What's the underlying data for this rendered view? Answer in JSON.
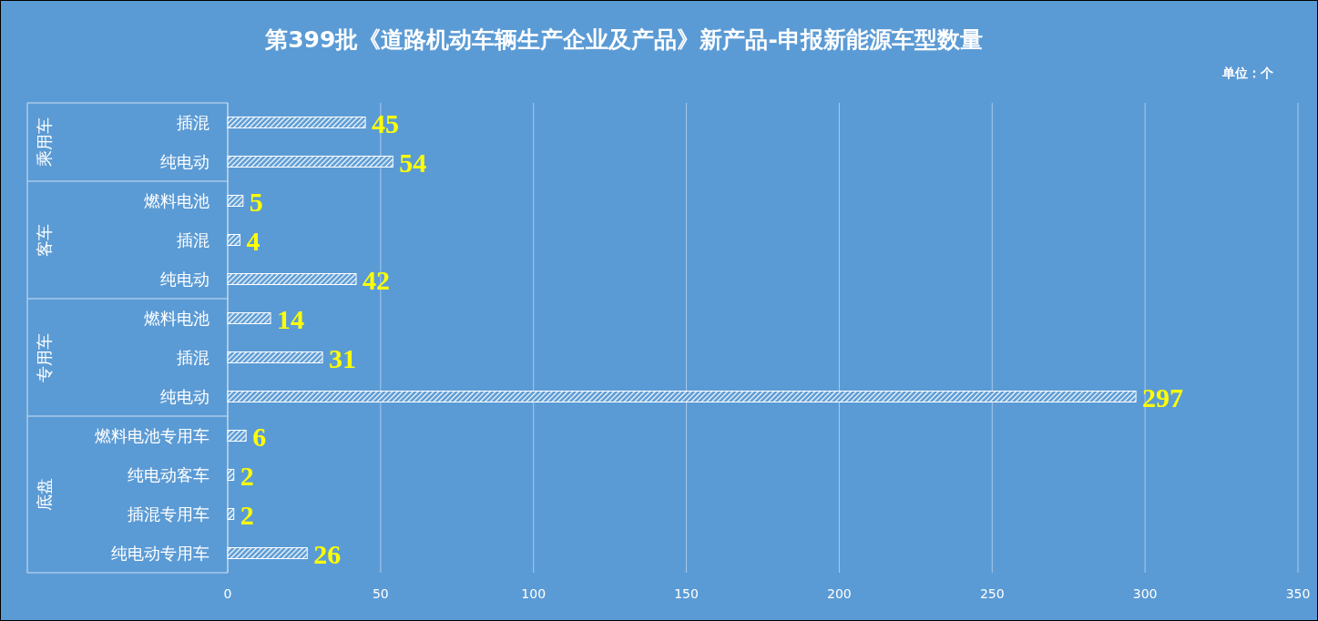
{
  "chart_data": {
    "type": "bar",
    "orientation": "horizontal",
    "title": "第399批《道路机动车辆生产企业及产品》新产品-申报新能源车型数量",
    "subtitle": "单位：个",
    "categories": [
      "插混",
      "纯电动",
      "燃料电池",
      "插混",
      "纯电动",
      "燃料电池",
      "插混",
      "纯电动",
      "燃料电池专用车",
      "纯电动客车",
      "插混专用车",
      "纯电动专用车"
    ],
    "values": [
      45,
      54,
      5,
      4,
      42,
      14,
      31,
      297,
      6,
      2,
      2,
      26
    ],
    "color": "#ffffff",
    "data_labels": true,
    "xlim": [
      0,
      350
    ],
    "xticks": [
      0,
      50,
      100,
      150,
      200,
      250,
      300,
      350
    ],
    "grid": "x",
    "annotations": [
      "乘用车",
      "客车",
      "专用车",
      "底盘"
    ]
  }
}
